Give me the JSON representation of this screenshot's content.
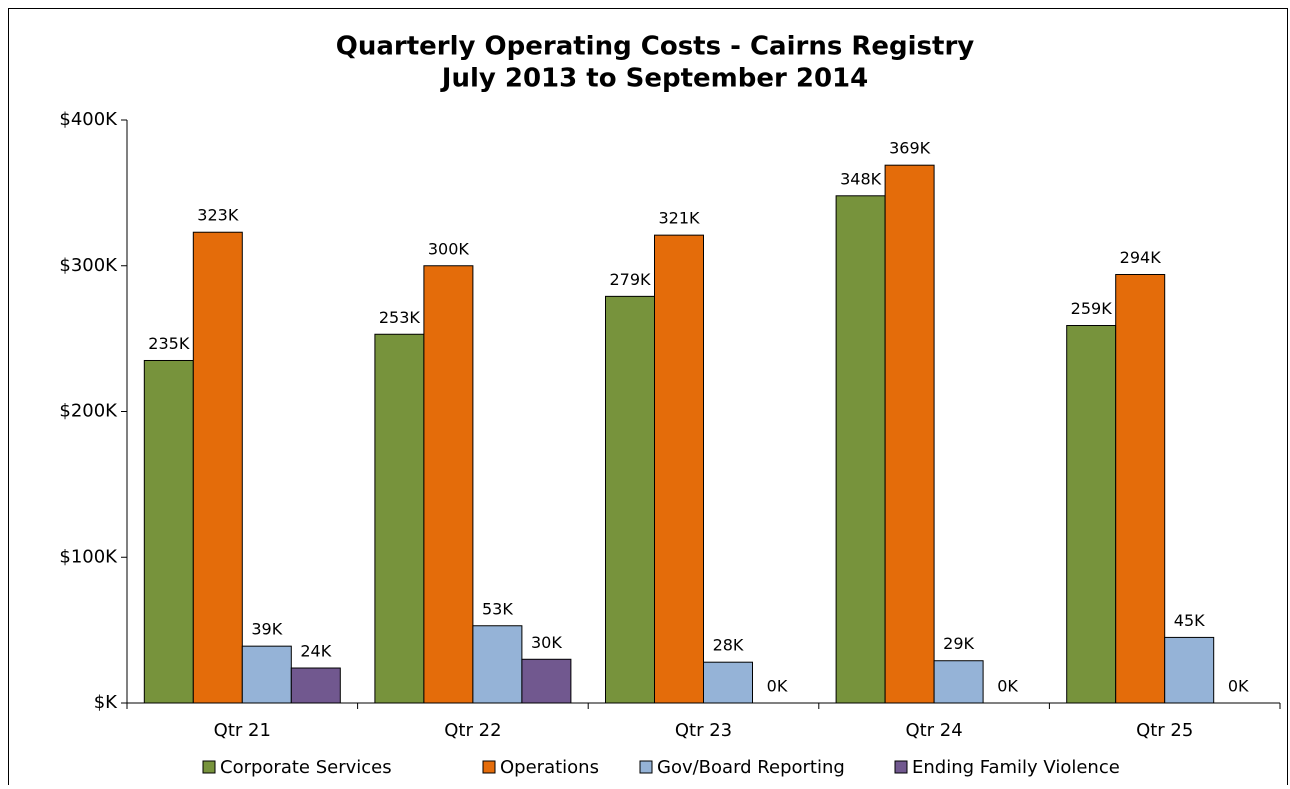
{
  "chart_data": {
    "type": "bar",
    "title": "Quarterly Operating Costs - Cairns Registry",
    "subtitle": "July 2013 to September 2014",
    "categories": [
      "Qtr 21",
      "Qtr 22",
      "Qtr 23",
      "Qtr 24",
      "Qtr 25"
    ],
    "series": [
      {
        "name": "Corporate Services",
        "color": "#77933c",
        "values": [
          235,
          253,
          279,
          348,
          259
        ],
        "value_labels": [
          "235K",
          "253K",
          "279K",
          "348K",
          "259K"
        ]
      },
      {
        "name": "Operations",
        "color": "#e46c0a",
        "values": [
          323,
          300,
          321,
          369,
          294
        ],
        "value_labels": [
          "323K",
          "300K",
          "321K",
          "369K",
          "294K"
        ]
      },
      {
        "name": "Gov/Board Reporting",
        "color": "#95b3d7",
        "values": [
          39,
          53,
          28,
          29,
          45
        ],
        "value_labels": [
          "39K",
          "53K",
          "28K",
          "29K",
          "45K"
        ]
      },
      {
        "name": "Ending Family Violence",
        "color": "#71588f",
        "values": [
          24,
          30,
          0,
          0,
          0
        ],
        "value_labels": [
          "24K",
          "30K",
          "0K",
          "0K",
          "0K"
        ]
      }
    ],
    "ylim": [
      0,
      400
    ],
    "yticks": [
      {
        "value": 0,
        "label": "$K"
      },
      {
        "value": 100,
        "label": "$100K"
      },
      {
        "value": 200,
        "label": "$200K"
      },
      {
        "value": 300,
        "label": "$300K"
      },
      {
        "value": 400,
        "label": "$400K"
      }
    ],
    "legend": "bottom"
  }
}
